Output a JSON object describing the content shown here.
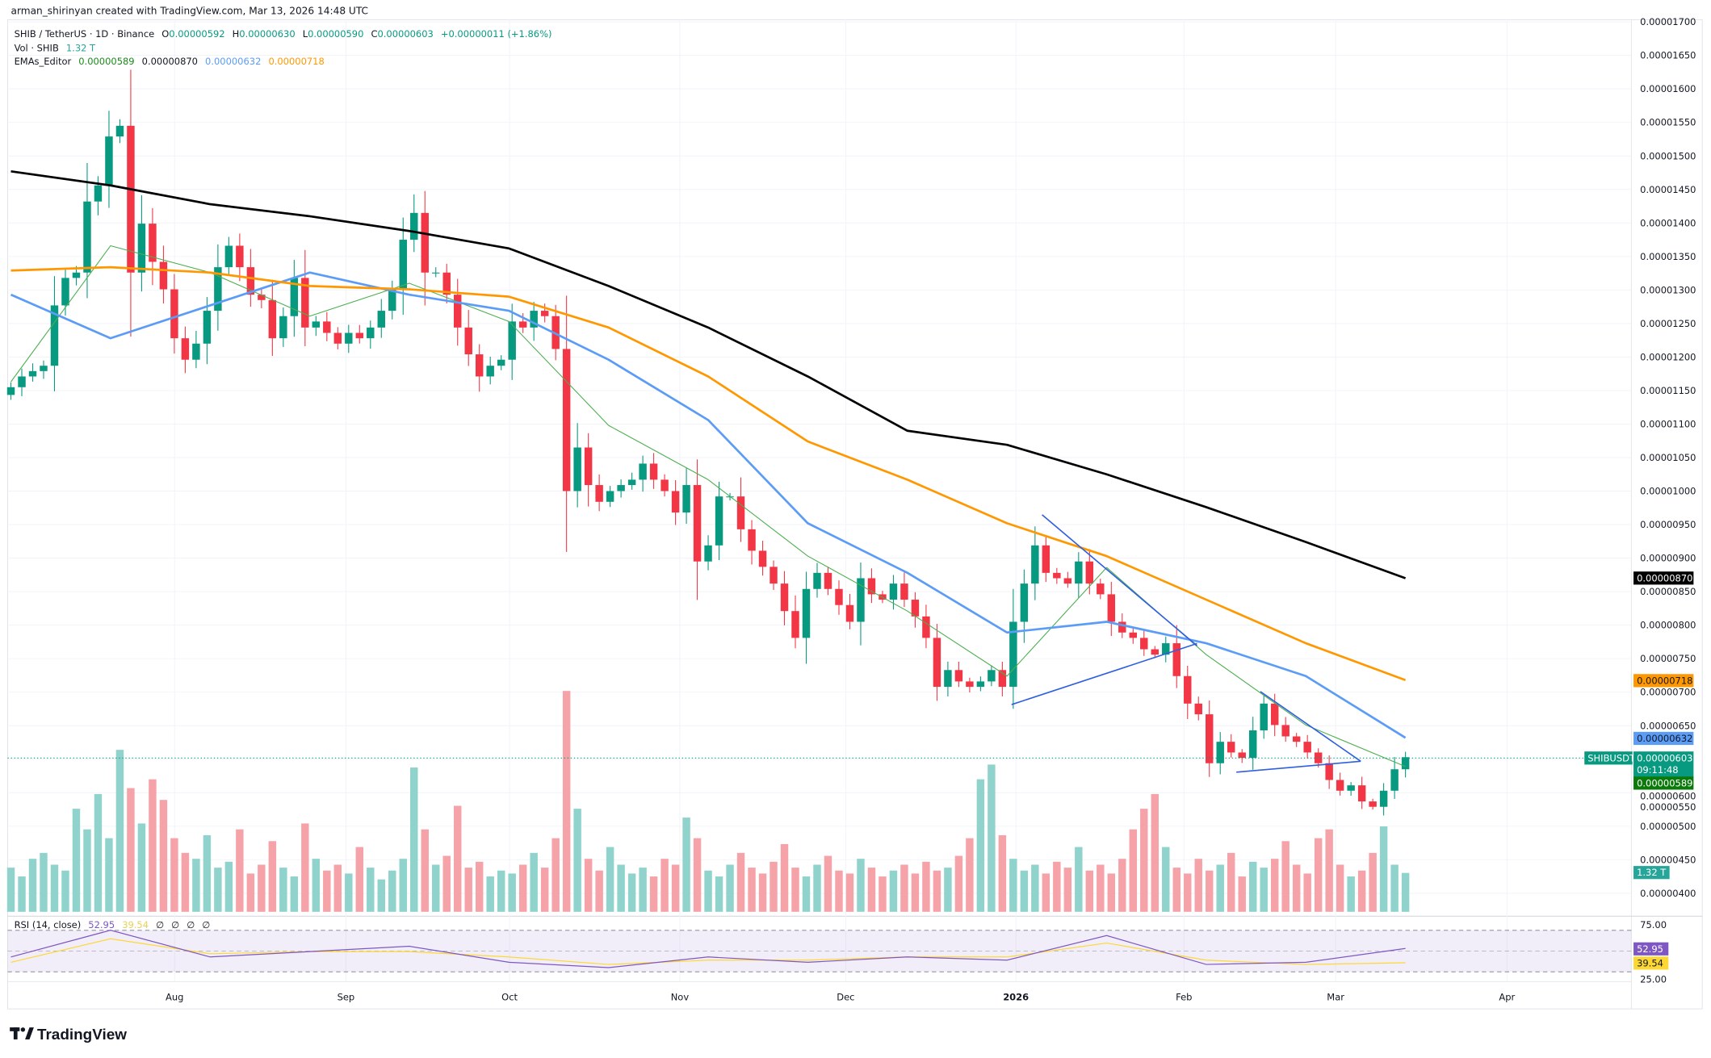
{
  "credit": "arman_shirinyan created with TradingView.com, Mar 13, 2026 14:48 UTC",
  "legend": {
    "symbol": "SHIB / TetherUS · 1D · Binance",
    "o_label": "O",
    "o": "0.00000592",
    "h_label": "H",
    "h": "0.00000630",
    "l_label": "L",
    "l": "0.00000590",
    "c_label": "C",
    "c": "0.00000603",
    "change": "+0.00000011 (+1.86%)",
    "vol_label": "Vol · SHIB",
    "vol": "1.32 T",
    "ema_label": "EMAs_Editor",
    "ema_values": [
      "0.00000589",
      "0.00000870",
      "0.00000632",
      "0.00000718"
    ],
    "rsi_label": "RSI (14, close)",
    "rsi": "52.95",
    "rsi_ma": "39.54",
    "rsi_extra": [
      "∅",
      "∅",
      "∅",
      "∅"
    ]
  },
  "markers": {
    "ema200": "0.00000870",
    "ema100": "0.00000718",
    "ema50": "0.00000632",
    "symbol_tag": "SHIBUSDT",
    "price": "0.00000603",
    "countdown": "09:11:48",
    "ema20": "0.00000589",
    "volume": "1.32 T",
    "rsi": "52.95",
    "rsi_ma": "39.54"
  },
  "logo": "TradingView",
  "colors": {
    "up": "#089981",
    "down": "#f23645",
    "vol_up": "#8fd3cc",
    "vol_down": "#f5a3a8",
    "ema20": "#4caf50",
    "ema200": "#000000",
    "ema50": "#5b9cf6",
    "ema100": "#ff9800",
    "rsi": "#7e57c2",
    "rsi_ma": "#fdd835",
    "trendline": "#2f5fe0"
  },
  "chart_data": {
    "type": "candlestick",
    "symbol": "SHIB / TetherUS",
    "interval": "1D",
    "ylim": [
      4e-06,
      1.7e-05
    ],
    "y_ticks": [
      "0.00001700",
      "0.00001650",
      "0.00001600",
      "0.00001550",
      "0.00001500",
      "0.00001450",
      "0.00001400",
      "0.00001350",
      "0.00001300",
      "0.00001250",
      "0.00001200",
      "0.00001150",
      "0.00001100",
      "0.00001050",
      "0.00001000",
      "0.00000950",
      "0.00000900",
      "0.00000850",
      "0.00000800",
      "0.00000750",
      "0.00000700",
      "0.00000650",
      "0.00000600",
      "0.00000550",
      "0.00000500",
      "0.00000450",
      "0.00000400"
    ],
    "x_ticks": [
      "Aug",
      "Sep",
      "Oct",
      "Nov",
      "Dec",
      "2026",
      "Feb",
      "Mar",
      "Apr"
    ],
    "closes": [
      1.155e-05,
      1.171e-05,
      1.179e-05,
      1.187e-05,
      1.277e-05,
      1.318e-05,
      1.326e-05,
      1.432e-05,
      1.456e-05,
      1.529e-05,
      1.545e-05,
      1.326e-05,
      1.399e-05,
      1.342e-05,
      1.301e-05,
      1.228e-05,
      1.196e-05,
      1.22e-05,
      1.269e-05,
      1.334e-05,
      1.366e-05,
      1.334e-05,
      1.293e-05,
      1.285e-05,
      1.228e-05,
      1.261e-05,
      1.318e-05,
      1.244e-05,
      1.253e-05,
      1.236e-05,
      1.22e-05,
      1.236e-05,
      1.228e-05,
      1.244e-05,
      1.269e-05,
      1.301e-05,
      1.375e-05,
      1.415e-05,
      1.326e-05,
      1.326e-05,
      1.293e-05,
      1.244e-05,
      1.204e-05,
      1.171e-05,
      1.187e-05,
      1.196e-05,
      1.253e-05,
      1.244e-05,
      1.269e-05,
      1.261e-05,
      1.212e-05,
      1e-05,
      1.065e-05,
      1.009e-05,
      9.84e-06,
      1e-05,
      1.009e-05,
      1.017e-05,
      1.041e-05,
      1.017e-05,
      1e-05,
      9.68e-06,
      1.009e-05,
      8.95e-06,
      9.19e-06,
      9.92e-06,
      9.92e-06,
      9.43e-06,
      9.11e-06,
      8.87e-06,
      8.62e-06,
      8.21e-06,
      7.81e-06,
      8.54e-06,
      8.78e-06,
      8.54e-06,
      8.3e-06,
      8.05e-06,
      8.7e-06,
      8.46e-06,
      8.38e-06,
      8.62e-06,
      8.38e-06,
      8.13e-06,
      7.81e-06,
      7.08e-06,
      7.33e-06,
      7.16e-06,
      7.08e-06,
      7.16e-06,
      7.33e-06,
      7.08e-06,
      8.05e-06,
      8.62e-06,
      9.19e-06,
      8.78e-06,
      8.7e-06,
      8.62e-06,
      8.95e-06,
      8.62e-06,
      8.46e-06,
      8.05e-06,
      7.89e-06,
      7.81e-06,
      7.64e-06,
      7.56e-06,
      7.73e-06,
      7.24e-06,
      6.83e-06,
      6.67e-06,
      5.94e-06,
      6.26e-06,
      6.1e-06,
      6.02e-06,
      6.43e-06,
      6.83e-06,
      6.51e-06,
      6.34e-06,
      6.26e-06,
      6.1e-06,
      5.94e-06,
      5.69e-06,
      5.53e-06,
      5.61e-06,
      5.37e-06,
      5.29e-06,
      5.53e-06,
      5.85e-06,
      6.03e-06
    ],
    "volume_T": [
      1.5,
      1.2,
      1.8,
      2.0,
      1.6,
      1.4,
      3.5,
      2.8,
      4.0,
      2.5,
      5.5,
      4.2,
      3.0,
      4.5,
      3.8,
      2.5,
      2.0,
      1.8,
      2.6,
      1.5,
      1.7,
      2.8,
      1.3,
      1.6,
      2.4,
      1.5,
      1.2,
      3.0,
      1.8,
      1.4,
      1.6,
      1.3,
      2.2,
      1.5,
      1.1,
      1.4,
      1.8,
      4.9,
      2.8,
      1.6,
      1.9,
      3.6,
      1.5,
      1.7,
      1.2,
      1.4,
      1.3,
      1.6,
      2.0,
      1.5,
      2.5,
      7.5,
      3.5,
      1.8,
      1.4,
      2.2,
      1.6,
      1.3,
      1.5,
      1.2,
      1.8,
      1.6,
      3.2,
      2.5,
      1.4,
      1.2,
      1.6,
      2.0,
      1.5,
      1.3,
      1.7,
      2.3,
      1.5,
      1.2,
      1.6,
      1.9,
      1.4,
      1.3,
      1.8,
      1.5,
      1.2,
      1.4,
      1.6,
      1.3,
      1.7,
      1.4,
      1.5,
      1.9,
      2.5,
      4.5,
      5.0,
      2.6,
      1.8,
      1.4,
      1.6,
      1.3,
      1.7,
      1.5,
      2.2,
      1.4,
      1.6,
      1.3,
      1.8,
      2.8,
      3.5,
      4.0,
      2.2,
      1.5,
      1.3,
      1.8,
      1.4,
      1.6,
      2.0,
      1.2,
      1.7,
      1.5,
      1.8,
      2.4,
      1.6,
      1.3,
      2.5,
      2.8,
      1.6,
      1.2,
      1.4,
      2.0,
      2.9,
      1.6,
      1.32
    ],
    "series": [
      {
        "name": "EMA 20",
        "color_key": "ema20",
        "values": [
          1.163e-05,
          1.366e-05,
          1.326e-05,
          1.261e-05,
          1.31e-05,
          1.253e-05,
          1.098e-05,
          1.017e-05,
          9.03e-06,
          8.21e-06,
          7.24e-06,
          8.86e-06,
          7.56e-06,
          6.51e-06,
          5.89e-06
        ]
      },
      {
        "name": "EMA 200",
        "color_key": "ema200",
        "values": [
          1.477e-05,
          1.456e-05,
          1.428e-05,
          1.41e-05,
          1.388e-05,
          1.362e-05,
          1.306e-05,
          1.244e-05,
          1.171e-05,
          1.09e-05,
          1.069e-05,
          1.025e-05,
          9.76e-06,
          9.24e-06,
          8.7e-06
        ]
      },
      {
        "name": "EMA 50",
        "color_key": "ema50",
        "values": [
          1.293e-05,
          1.228e-05,
          1.277e-05,
          1.326e-05,
          1.293e-05,
          1.269e-05,
          1.196e-05,
          1.106e-05,
          9.52e-06,
          8.78e-06,
          7.89e-06,
          8.05e-06,
          7.73e-06,
          7.24e-06,
          6.32e-06
        ]
      },
      {
        "name": "EMA 100",
        "color_key": "ema100",
        "values": [
          1.329e-05,
          1.334e-05,
          1.326e-05,
          1.306e-05,
          1.301e-05,
          1.29e-05,
          1.244e-05,
          1.171e-05,
          1.074e-05,
          1.017e-05,
          9.52e-06,
          9.03e-06,
          8.38e-06,
          7.73e-06,
          7.18e-06
        ]
      }
    ],
    "rsi": {
      "ylim": [
        25,
        75
      ],
      "levels": [
        70,
        50,
        30
      ],
      "y_ticks": [
        "75.00",
        "25.00"
      ],
      "values": [
        45,
        70,
        45,
        50,
        55,
        40,
        35,
        45,
        40,
        45,
        42,
        65,
        38,
        40,
        52.95
      ],
      "ma": [
        40,
        62,
        48,
        50,
        50,
        45,
        38,
        42,
        42,
        45,
        45,
        58,
        42,
        38,
        39.54
      ]
    }
  }
}
